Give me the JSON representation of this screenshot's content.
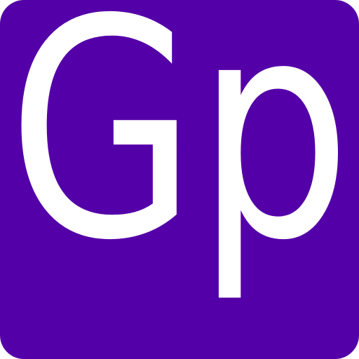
{
  "icon": {
    "name": "gp-app-icon",
    "text": "Gp",
    "background_color": "#5400a8",
    "text_color": "#ffffff"
  }
}
